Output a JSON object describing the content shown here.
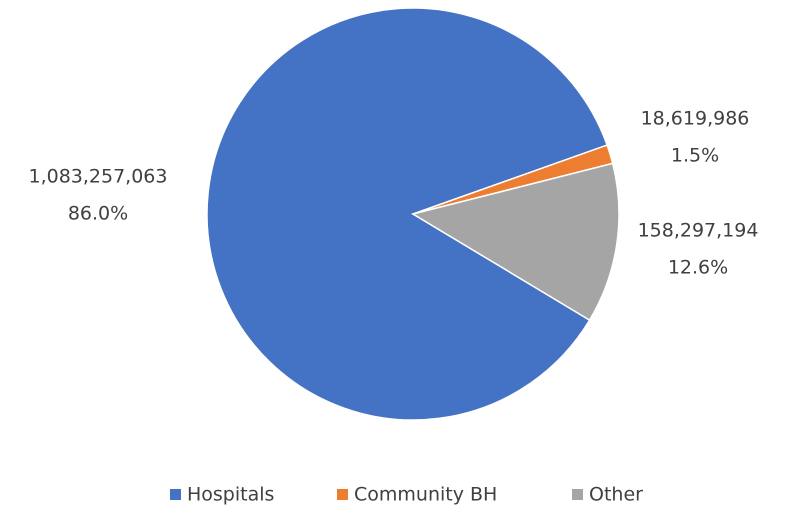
{
  "chart_data": {
    "type": "pie",
    "categories": [
      "Hospitals",
      "Community BH",
      "Other"
    ],
    "values": [
      1083257063,
      18619986,
      158297194
    ],
    "value_labels": [
      "1,083,257,063",
      "18,619,986",
      "158,297,194"
    ],
    "percent_labels": [
      "86.0%",
      "1.5%",
      "12.6%"
    ],
    "colors": [
      "#4472c4",
      "#ed7d31",
      "#a5a5a5"
    ],
    "legend": "bottom"
  }
}
